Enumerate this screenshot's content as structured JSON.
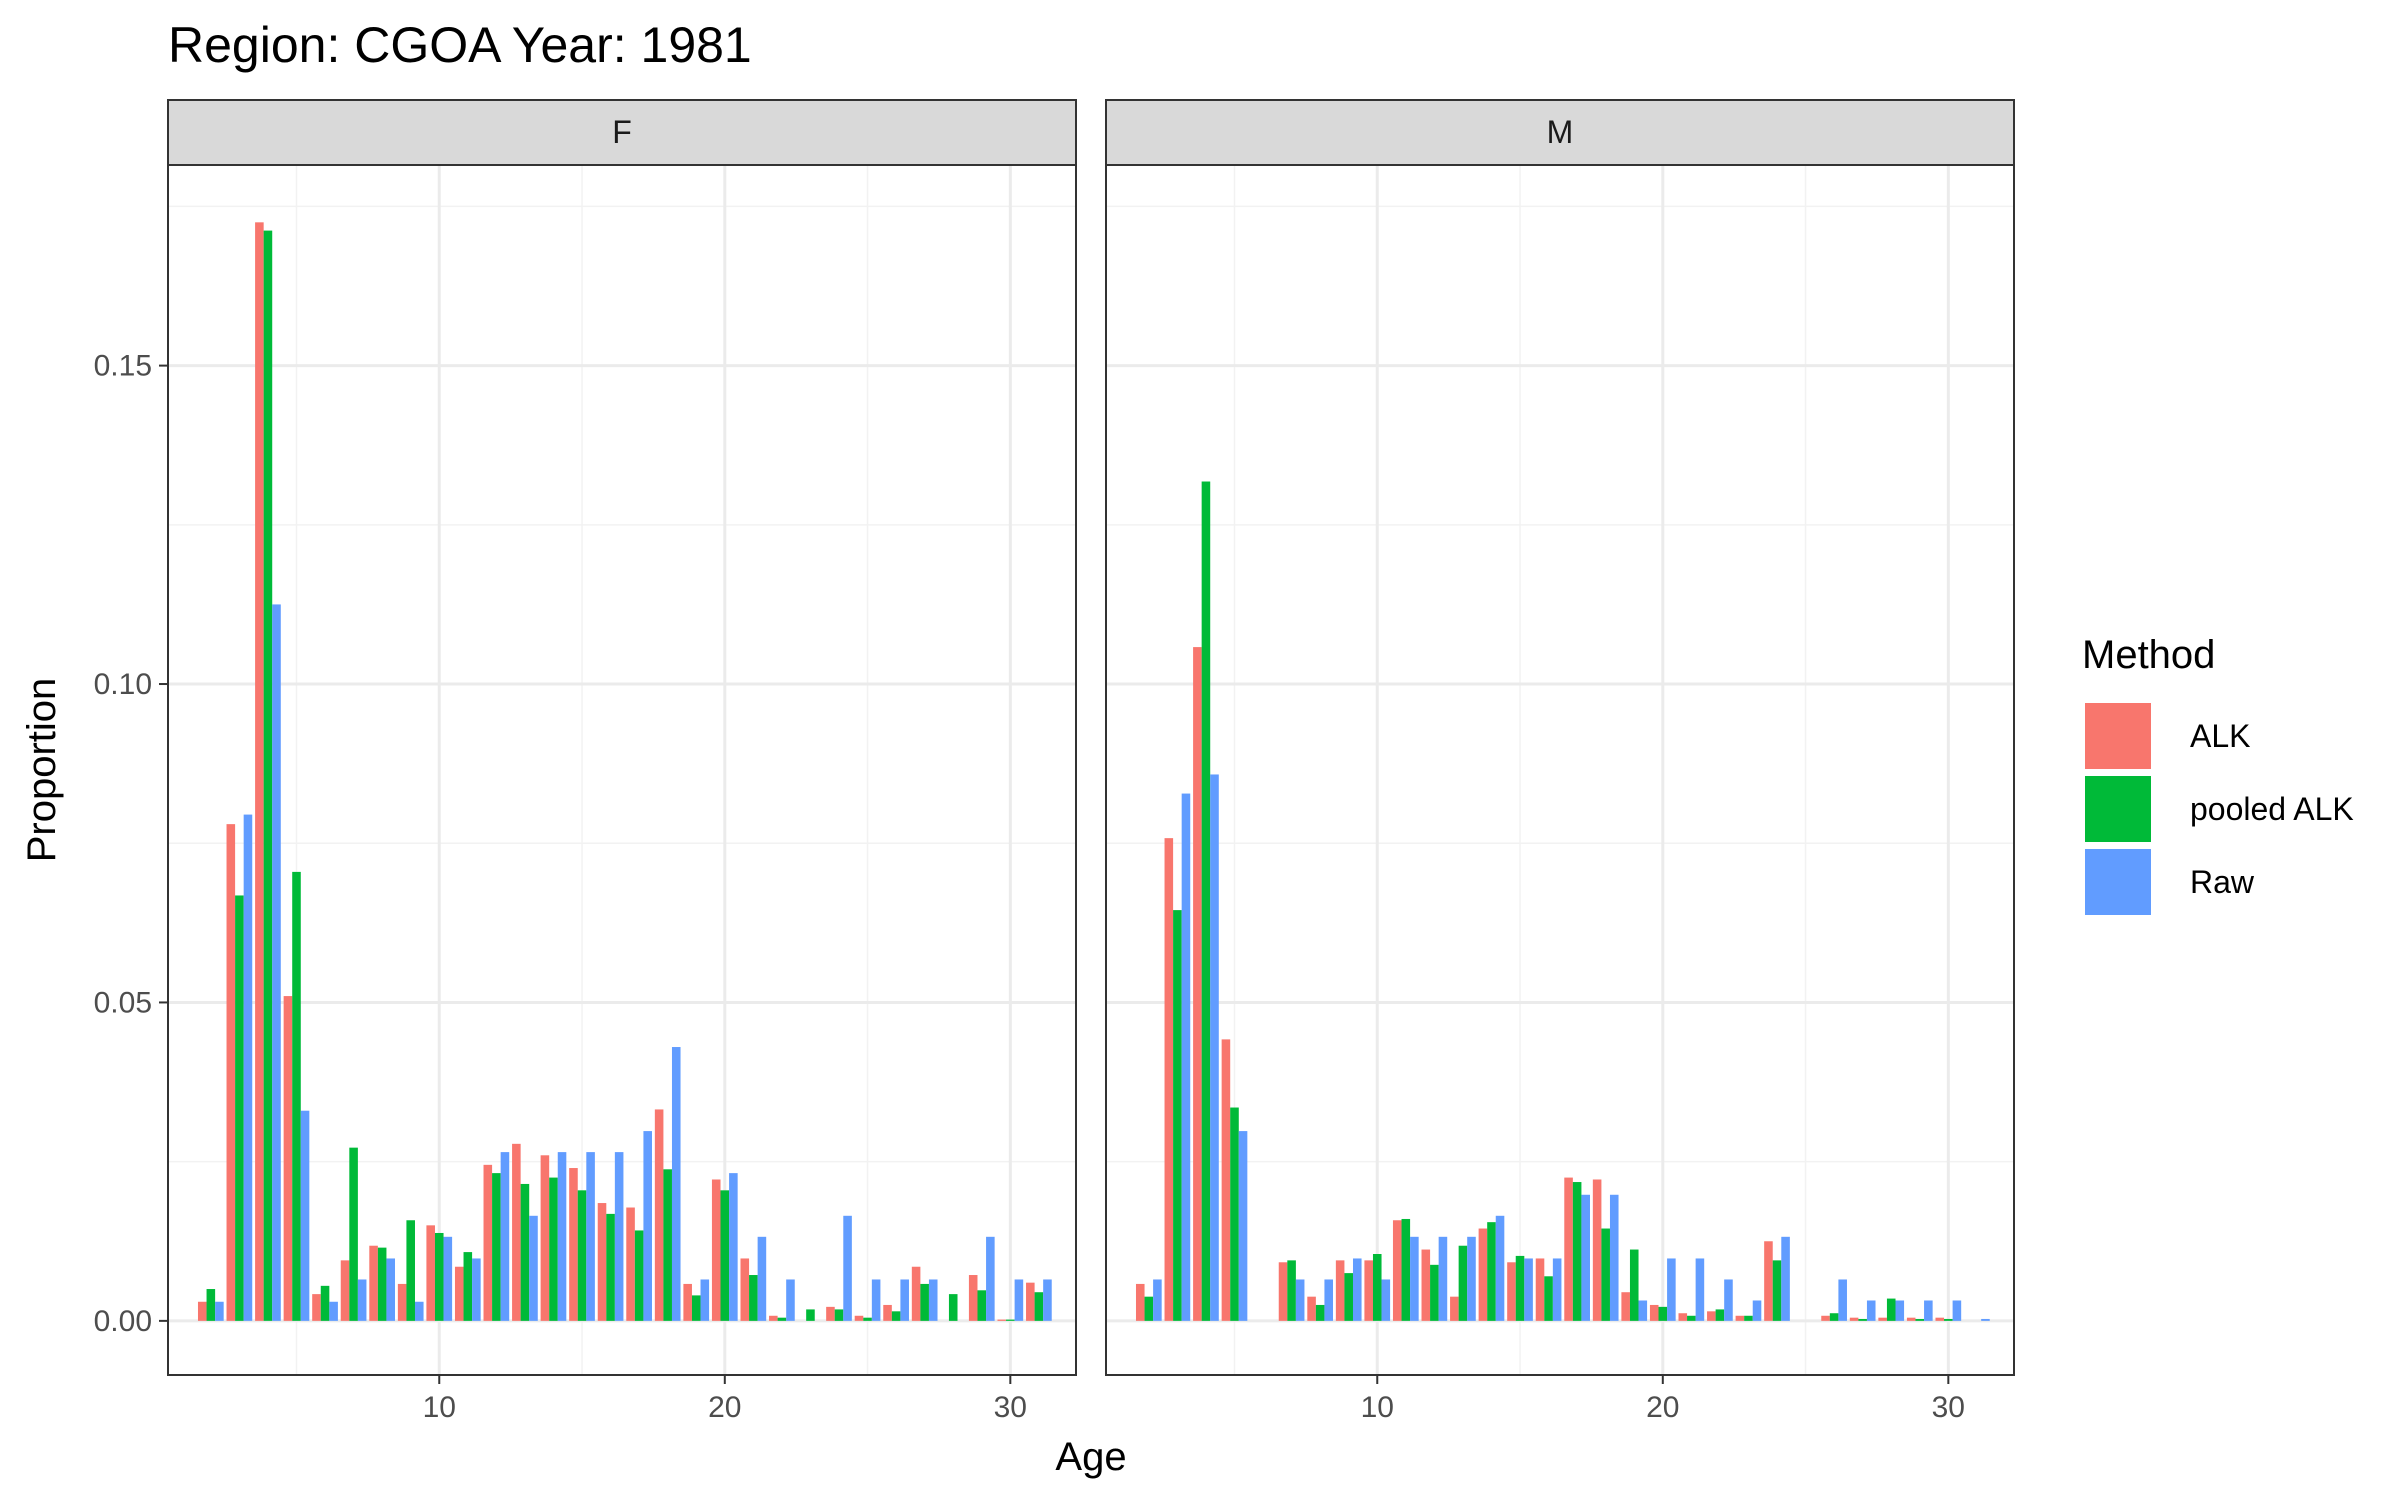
{
  "chart_data": {
    "type": "bar",
    "title": "Region: CGOA Year: 1981",
    "xlabel": "Age",
    "ylabel": "Proportion",
    "xlim": [
      0.5,
      32.3
    ],
    "ylim": [
      -0.0085,
      0.1815
    ],
    "x_ticks": [
      10,
      20,
      30
    ],
    "y_ticks": [
      0.0,
      0.05,
      0.1,
      0.15
    ],
    "y_tick_labels": [
      "0.00",
      "0.05",
      "0.10",
      "0.15"
    ],
    "grid": true,
    "legend": {
      "title": "Method",
      "position": "right"
    },
    "colors": {
      "ALK": "#F8766D",
      "pooled ALK": "#00BA38",
      "Raw": "#619CFF"
    },
    "panels": [
      {
        "label": "F",
        "x": [
          2,
          3,
          4,
          5,
          6,
          7,
          8,
          9,
          10,
          11,
          12,
          13,
          14,
          15,
          16,
          17,
          18,
          19,
          20,
          21,
          22,
          23,
          24,
          25,
          26,
          27,
          28,
          29,
          30,
          31
        ],
        "series": [
          {
            "name": "ALK",
            "values": [
              0.003,
              0.078,
              0.1725,
              0.051,
              0.0042,
              0.0095,
              0.0118,
              0.0058,
              0.015,
              0.0085,
              0.0245,
              0.0278,
              0.026,
              0.024,
              0.0185,
              0.0178,
              0.0332,
              0.0058,
              0.0222,
              0.0098,
              0.0008,
              0.0,
              0.0022,
              0.0008,
              0.0025,
              0.0085,
              0.0,
              0.0072,
              0.0002,
              0.006
            ]
          },
          {
            "name": "pooled ALK",
            "values": [
              0.005,
              0.0668,
              0.1712,
              0.0705,
              0.0055,
              0.0272,
              0.0115,
              0.0158,
              0.0138,
              0.0108,
              0.0232,
              0.0215,
              0.0225,
              0.0205,
              0.0168,
              0.0142,
              0.0238,
              0.004,
              0.0205,
              0.0072,
              0.0005,
              0.0018,
              0.0018,
              0.0005,
              0.0015,
              0.0058,
              0.0042,
              0.0048,
              0.0002,
              0.0045
            ]
          },
          {
            "name": "Raw",
            "values": [
              0.003,
              0.0795,
              0.1125,
              0.033,
              0.003,
              0.0065,
              0.0098,
              0.003,
              0.0132,
              0.0098,
              0.0265,
              0.0165,
              0.0265,
              0.0265,
              0.0265,
              0.0298,
              0.043,
              0.0065,
              0.0232,
              0.0132,
              0.0065,
              0.0,
              0.0165,
              0.0065,
              0.0065,
              0.0065,
              0.0,
              0.0132,
              0.0065,
              0.0065
            ]
          }
        ]
      },
      {
        "label": "M",
        "x": [
          2,
          3,
          4,
          5,
          6,
          7,
          8,
          9,
          10,
          11,
          12,
          13,
          14,
          15,
          16,
          17,
          18,
          19,
          20,
          21,
          22,
          23,
          24,
          25,
          26,
          27,
          28,
          29,
          30,
          31
        ],
        "series": [
          {
            "name": "ALK",
            "values": [
              0.0058,
              0.0758,
              0.1058,
              0.0442,
              0.0,
              0.0092,
              0.0038,
              0.0095,
              0.0095,
              0.0158,
              0.0112,
              0.0038,
              0.0145,
              0.0092,
              0.0098,
              0.0225,
              0.0222,
              0.0045,
              0.0025,
              0.0012,
              0.0015,
              0.0008,
              0.0125,
              0.0,
              0.0008,
              0.0005,
              0.0005,
              0.0005,
              0.0005,
              0.0
            ]
          },
          {
            "name": "pooled ALK",
            "values": [
              0.0038,
              0.0645,
              0.1318,
              0.0335,
              0.0,
              0.0095,
              0.0025,
              0.0075,
              0.0105,
              0.016,
              0.0088,
              0.0118,
              0.0155,
              0.0102,
              0.007,
              0.0218,
              0.0145,
              0.0112,
              0.0022,
              0.0008,
              0.0018,
              0.0008,
              0.0095,
              0.0,
              0.0012,
              0.0003,
              0.0035,
              0.0003,
              0.0003,
              0.0
            ]
          },
          {
            "name": "Raw",
            "values": [
              0.0065,
              0.0828,
              0.0858,
              0.0298,
              0.0,
              0.0065,
              0.0065,
              0.0098,
              0.0065,
              0.0132,
              0.0132,
              0.0132,
              0.0165,
              0.0098,
              0.0098,
              0.0198,
              0.0198,
              0.0032,
              0.0098,
              0.0098,
              0.0065,
              0.0032,
              0.0132,
              0.0,
              0.0065,
              0.0032,
              0.0032,
              0.0032,
              0.0032,
              0.0003
            ]
          }
        ]
      }
    ]
  }
}
